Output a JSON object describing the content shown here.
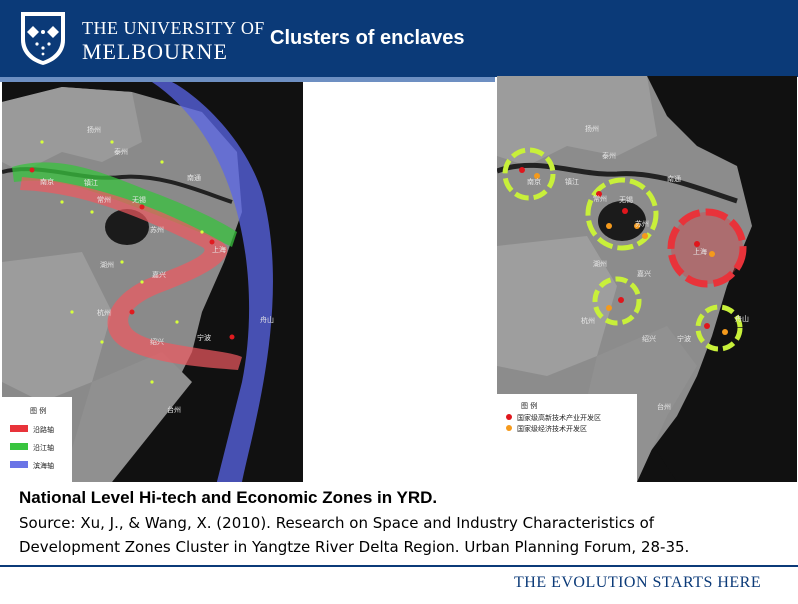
{
  "header": {
    "university_line1": "THE UNIVERSITY OF",
    "university_line2": "MELBOURNE",
    "title": "Clusters of enclaves"
  },
  "left_map": {
    "city_labels": [
      "扬州",
      "泰州",
      "南京",
      "镇江",
      "常州",
      "无锡",
      "苏州",
      "南通",
      "上海",
      "湖州",
      "嘉兴",
      "杭州",
      "绍兴",
      "宁波",
      "舟山",
      "台州"
    ],
    "legend_title": "图 例",
    "legend_items": [
      {
        "label": "沿路轴",
        "color": "#e8333a"
      },
      {
        "label": "沿江轴",
        "color": "#39c43f"
      },
      {
        "label": "滨海轴",
        "color": "#6a74e6"
      }
    ]
  },
  "right_map": {
    "city_labels": [
      "扬州",
      "泰州",
      "南京",
      "镇江",
      "常州",
      "无锡",
      "苏州",
      "南通",
      "上海",
      "湖州",
      "嘉兴",
      "杭州",
      "绍兴",
      "宁波",
      "舟山",
      "台州"
    ],
    "legend_title": "图 例",
    "legend_items": [
      {
        "label": "国家级高新技术产业开发区",
        "color": "#e0161c"
      },
      {
        "label": "国家级经济技术开发区",
        "color": "#f59a1c"
      }
    ]
  },
  "caption": {
    "heading": "National Level Hi-tech and Economic Zones in YRD.",
    "source_line1": "Source: Xu, J., & Wang, X. (2010). Research on Space and Industry Characteristics of",
    "source_line2": "Development Zones Cluster in Yangtze River Delta Region. Urban Planning Forum, 28-35."
  },
  "footer": {
    "tagline": "THE EVOLUTION STARTS HERE"
  }
}
